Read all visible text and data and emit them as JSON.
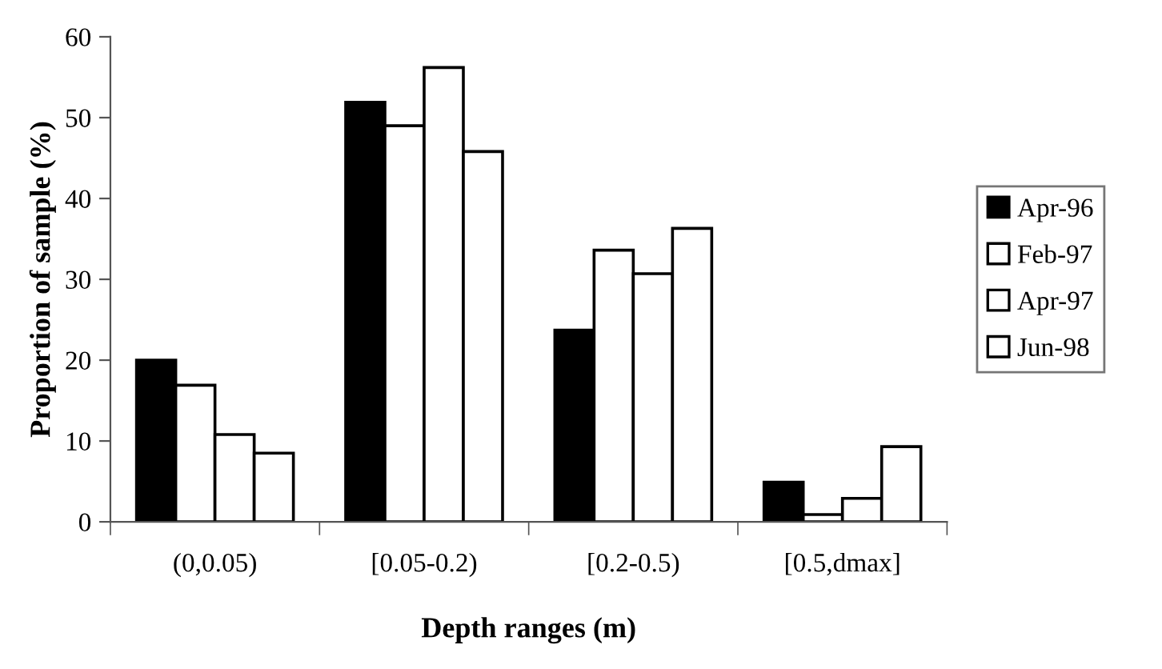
{
  "chart_data": {
    "type": "bar",
    "xlabel": "Depth ranges (m)",
    "ylabel": "Proportion of sample (%)",
    "categories": [
      "(0,0.05)",
      "[0.05-0.2)",
      "[0.2-0.5)",
      "[0.5,dmax]"
    ],
    "series": [
      {
        "name": "Apr-96",
        "color": "#000000",
        "values": [
          20.0,
          51.9,
          23.7,
          4.9
        ]
      },
      {
        "name": "Feb-97",
        "color": "#ffffff",
        "values": [
          16.9,
          49.0,
          33.6,
          0.9
        ]
      },
      {
        "name": "Apr-97",
        "color": "#ffffff",
        "values": [
          10.8,
          56.2,
          30.7,
          2.9
        ]
      },
      {
        "name": "Jun-98",
        "color": "#ffffff",
        "values": [
          8.5,
          45.8,
          36.3,
          9.3
        ]
      }
    ],
    "ylim": [
      0,
      60
    ],
    "yticks": [
      0,
      10,
      20,
      30,
      40,
      50,
      60
    ],
    "grid": false,
    "legend": "right"
  }
}
